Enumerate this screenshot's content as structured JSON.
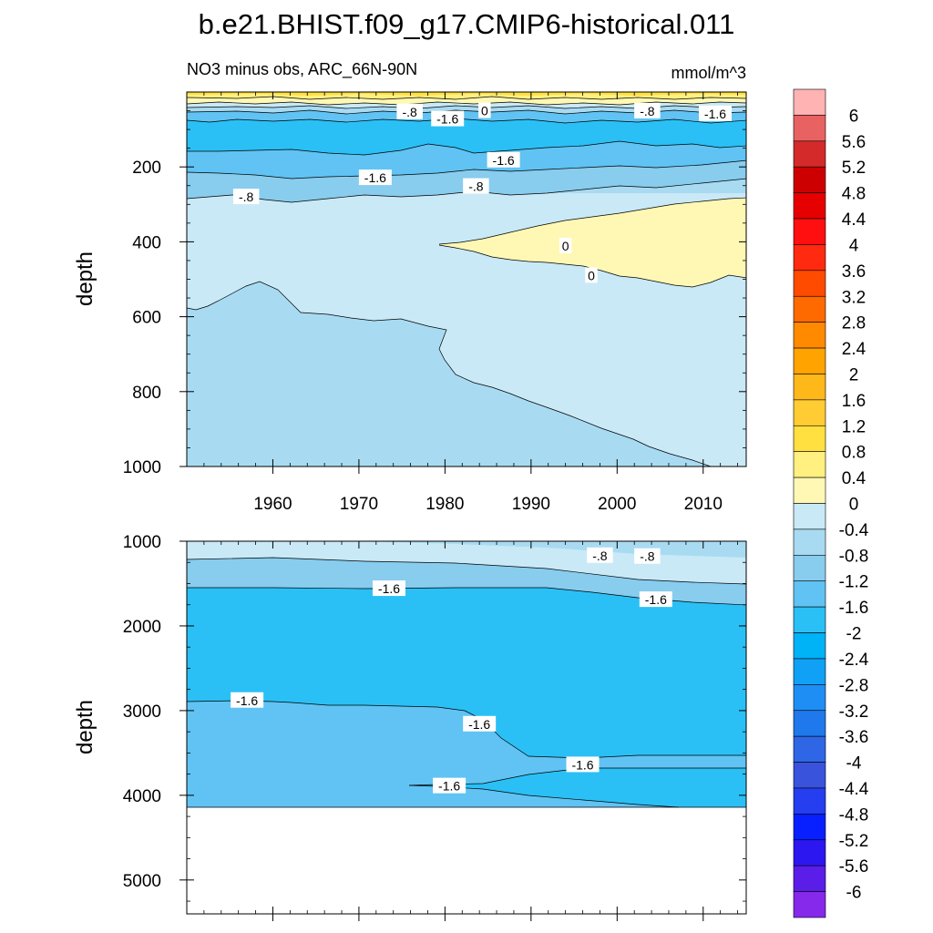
{
  "chart_data": {
    "type": "contour",
    "title": "b.e21.BHIST.f09_g17.CMIP6-historical.011",
    "subtitle_left": "NO3 minus obs, ARC_66N-90N",
    "subtitle_right": "mmol/m^3",
    "colorbar": {
      "levels": [
        "6",
        "5.6",
        "5.2",
        "4.8",
        "4.4",
        "4",
        "3.6",
        "3.2",
        "2.8",
        "2.4",
        "2",
        "1.6",
        "1.2",
        "0.8",
        "0.4",
        "0",
        "-0.4",
        "-0.8",
        "-1.2",
        "-1.6",
        "-2",
        "-2.4",
        "-2.8",
        "-3.2",
        "-3.6",
        "-4",
        "-4.4",
        "-4.8",
        "-5.2",
        "-5.6",
        "-6"
      ],
      "colors": [
        "#ffb3b3",
        "#e86262",
        "#d42a2a",
        "#cc0000",
        "#e60000",
        "#ff0f0f",
        "#ff2a0f",
        "#ff4b00",
        "#ff6a00",
        "#ff8a00",
        "#ffa300",
        "#ffb81a",
        "#ffcc33",
        "#ffe040",
        "#fff080",
        "#fff8b4",
        "#c9e9f6",
        "#a8dbf2",
        "#88ccee",
        "#60c3f3",
        "#2ac0f5",
        "#00b2f6",
        "#10a0f5",
        "#1f8ef4",
        "#1f79ed",
        "#2f66e6",
        "#3a53dc",
        "#243ef0",
        "#0820ff",
        "#2d17f0",
        "#5a1ee8",
        "#8629ea"
      ]
    },
    "panels": [
      {
        "name": "upper",
        "ylabel": "depth",
        "ylim": [
          0,
          1000
        ],
        "y_inverted": true,
        "yticks": [
          200,
          400,
          600,
          800,
          1000
        ],
        "xlim": [
          1950,
          2015
        ],
        "xticks": [
          1960,
          1970,
          1980,
          1990,
          2000,
          2010
        ],
        "contour_labels": [
          {
            "text": "-.8",
            "x": 1975.9,
            "y": 53
          },
          {
            "text": "-1.6",
            "x": 1980.3,
            "y": 72
          },
          {
            "text": "0",
            "x": 1984.6,
            "y": 50
          },
          {
            "text": "-.8",
            "x": 2003.5,
            "y": 51
          },
          {
            "text": "-1.6",
            "x": 2011.4,
            "y": 58
          },
          {
            "text": "-1.6",
            "x": 1986.8,
            "y": 182
          },
          {
            "text": "-1.6",
            "x": 1971.9,
            "y": 229
          },
          {
            "text": "-.8",
            "x": 1983.6,
            "y": 252
          },
          {
            "text": "-.8",
            "x": 1956.9,
            "y": 280
          },
          {
            "text": "0",
            "x": 1994.0,
            "y": 411
          },
          {
            "text": "0",
            "x": 1997.0,
            "y": 490
          }
        ]
      },
      {
        "name": "lower",
        "ylabel": "depth",
        "ylim": [
          1000,
          5400
        ],
        "y_inverted": true,
        "yticks": [
          1000,
          2000,
          3000,
          4000,
          5000
        ],
        "xlim": [
          1950,
          2015
        ],
        "contour_labels": [
          {
            "text": "-.8",
            "x": 1998.0,
            "y": 1170
          },
          {
            "text": "-.8",
            "x": 2003.5,
            "y": 1180
          },
          {
            "text": "-1.6",
            "x": 1973.5,
            "y": 1560
          },
          {
            "text": "-1.6",
            "x": 2004.5,
            "y": 1690
          },
          {
            "text": "-1.6",
            "x": 1957.0,
            "y": 2880
          },
          {
            "text": "-1.6",
            "x": 1984.0,
            "y": 3160
          },
          {
            "text": "-1.6",
            "x": 1996.0,
            "y": 3640
          },
          {
            "text": "-1.6",
            "x": 1980.5,
            "y": 3890
          }
        ]
      }
    ]
  }
}
